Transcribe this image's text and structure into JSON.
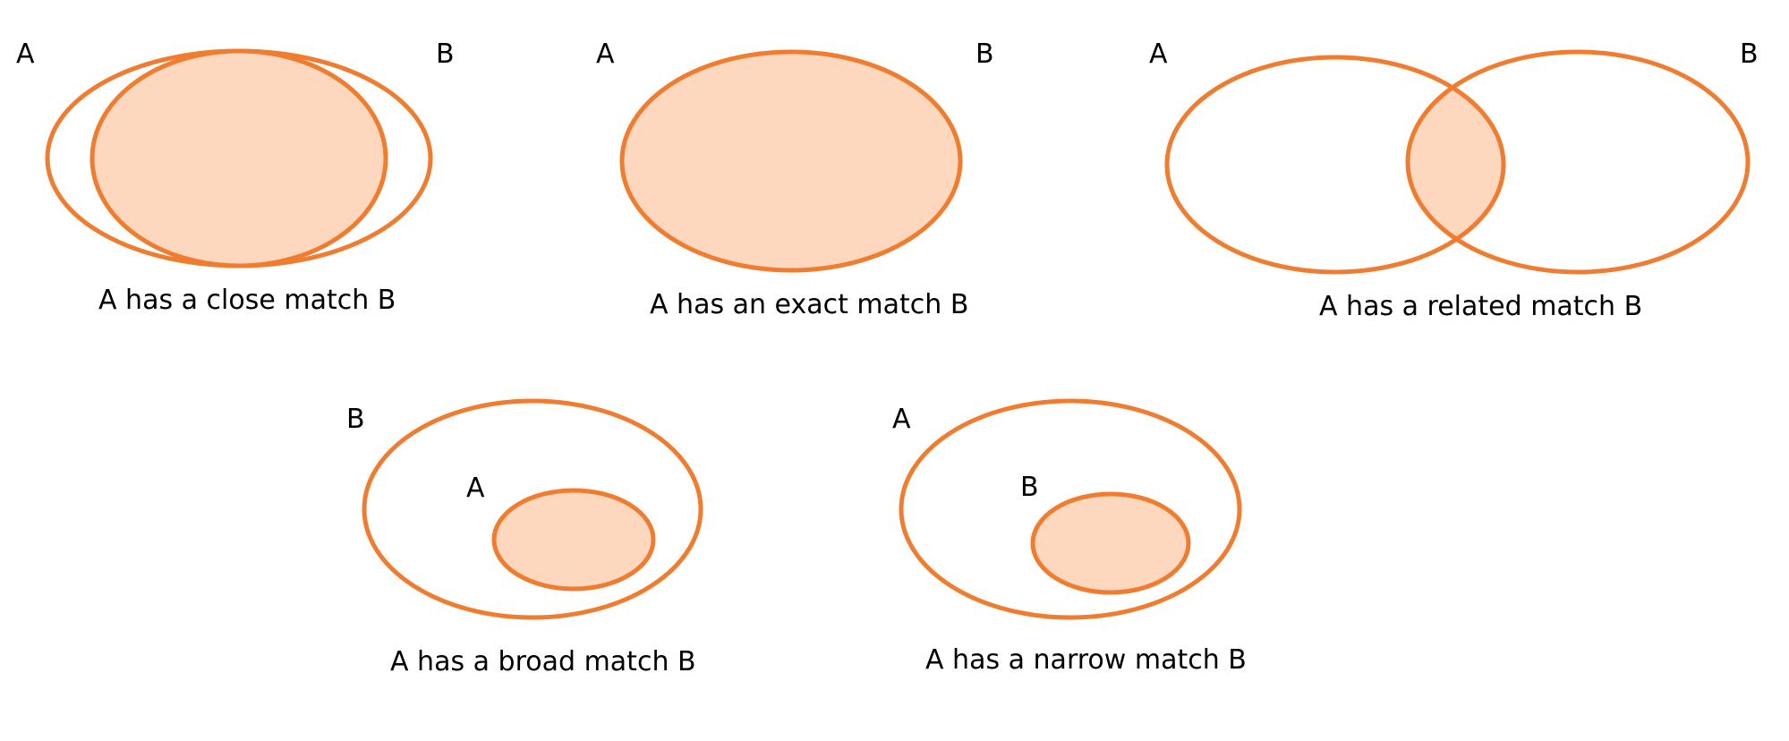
{
  "colors": {
    "stroke": "#F07D2F",
    "fill": "#FDD8BF",
    "text": "#000000",
    "background": "#FFFFFF"
  },
  "diagrams": {
    "close": {
      "label_left": "A",
      "label_right": "B",
      "caption": "A has a close match B"
    },
    "exact": {
      "label_left": "A",
      "label_right": "B",
      "caption": "A has an exact match B"
    },
    "related": {
      "label_left": "A",
      "label_right": "B",
      "caption": "A has a related match B"
    },
    "broad": {
      "label_outer": "B",
      "label_inner": "A",
      "caption": "A has a broad match B"
    },
    "narrow": {
      "label_outer": "A",
      "label_inner": "B",
      "caption": "A has a narrow match B"
    }
  }
}
